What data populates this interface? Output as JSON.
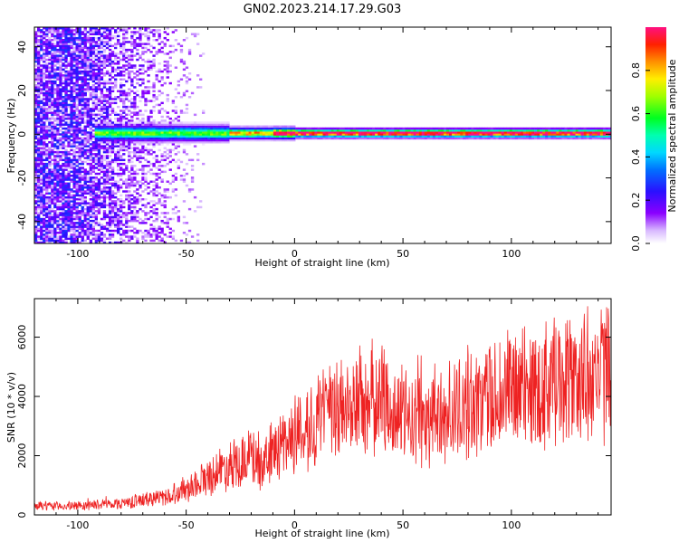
{
  "figure_title": "GN02.2023.214.17.29.G03",
  "chart_data": [
    {
      "type": "heatmap",
      "title": "GN02.2023.214.17.29.G03",
      "xlabel": "Height of straight line (km)",
      "ylabel": "Frequency (Hz)",
      "xlim": [
        -120,
        146
      ],
      "ylim": [
        -50,
        49
      ],
      "x_ticks": [
        -100,
        -50,
        0,
        50,
        100
      ],
      "x_tick_labels": [
        "-100",
        "-50",
        "0",
        "50",
        "100"
      ],
      "y_ticks": [
        -40,
        -20,
        0,
        20,
        40
      ],
      "y_tick_labels": [
        "-40",
        "-20",
        "0",
        "20",
        "40"
      ],
      "colorbar": {
        "label": "Normalized spectral amplitude",
        "range": [
          0,
          1
        ],
        "ticks": [
          0,
          0.2,
          0.4,
          0.6,
          0.8
        ],
        "tick_labels": [
          "0.0",
          "0.2",
          "0.4",
          "0.6",
          "0.8"
        ],
        "colormap": "rainbow (white-purple-blue-cyan-green-yellow-red-pink)"
      },
      "description_points": {
        "noise_region_x": [
          -120,
          -40
        ],
        "signal_start_x": -90,
        "signal_freq_hz": 0,
        "signal_peak_amplitude_after_x": -30
      }
    },
    {
      "type": "line",
      "xlabel": "Height of straight line (km)",
      "ylabel": "SNR (10 * v/v)",
      "xlim": [
        -120,
        146
      ],
      "ylim": [
        0,
        7300
      ],
      "x_ticks": [
        -100,
        -50,
        0,
        50,
        100
      ],
      "x_tick_labels": [
        "-100",
        "-50",
        "0",
        "50",
        "100"
      ],
      "y_ticks": [
        0,
        2000,
        4000,
        6000
      ],
      "y_tick_labels": [
        "0",
        "2000",
        "4000",
        "6000"
      ],
      "color": "#ee2222",
      "trend": {
        "x": [
          -120,
          -100,
          -80,
          -60,
          -50,
          -40,
          -30,
          -20,
          -15,
          -10,
          0,
          10,
          20,
          30,
          40,
          45,
          50,
          60,
          70,
          80,
          90,
          100,
          110,
          120,
          130,
          140,
          146
        ],
        "y": [
          300,
          300,
          400,
          600,
          900,
          1300,
          1700,
          2000,
          1500,
          2200,
          2700,
          3200,
          3500,
          3800,
          3900,
          3700,
          3300,
          3200,
          3400,
          3700,
          4000,
          4200,
          4300,
          4500,
          4600,
          4700,
          4900
        ]
      },
      "noise_amplitude_fraction": 0.35
    }
  ]
}
